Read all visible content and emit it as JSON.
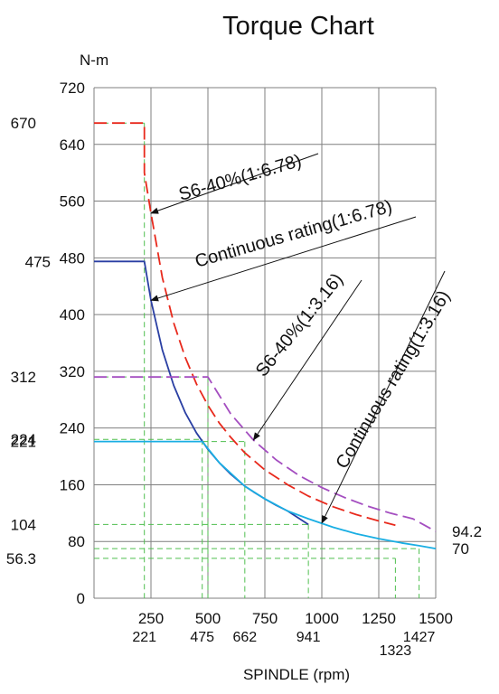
{
  "chart_data": {
    "type": "line",
    "title": "Torque Chart",
    "ylabel": "N-m",
    "xlabel": "SPINDLE (rpm)",
    "xlim": [
      0,
      1500
    ],
    "ylim": [
      0,
      720
    ],
    "x_ticks": [
      250,
      500,
      750,
      1000,
      1250,
      1500
    ],
    "y_ticks": [
      0,
      80,
      160,
      240,
      320,
      400,
      480,
      560,
      640,
      720
    ],
    "x_grid": [
      0,
      250,
      500,
      750,
      1000,
      1250,
      1500
    ],
    "y_grid": [
      0,
      80,
      160,
      240,
      320,
      400,
      480,
      560,
      640,
      720
    ],
    "x_markers": [
      {
        "label": "221",
        "value": 221,
        "row": 1
      },
      {
        "label": "475",
        "value": 475,
        "row": 1
      },
      {
        "label": "662",
        "value": 662,
        "row": 1
      },
      {
        "label": "941",
        "value": 941,
        "row": 1
      },
      {
        "label": "1427",
        "value": 1427,
        "row": 1
      },
      {
        "label": "1323",
        "value": 1323,
        "row": 2
      }
    ],
    "y_markers_left": [
      {
        "label": "670",
        "value": 670
      },
      {
        "label": "312",
        "value": 312
      },
      {
        "label": "224",
        "value": 224
      },
      {
        "label": "221",
        "value": 221
      },
      {
        "label": "104",
        "value": 104
      },
      {
        "label": "56.3",
        "value": 56.3
      }
    ],
    "y_marker_475": {
      "label": "475",
      "value": 475
    },
    "y_markers_right": [
      {
        "label": "94.2",
        "value": 94.2
      },
      {
        "label": "70",
        "value": 70
      }
    ],
    "guides": [
      {
        "x": 221,
        "y": 670
      },
      {
        "x": 941,
        "y": 104
      },
      {
        "x": 475,
        "y": 224
      },
      {
        "x": 662,
        "y": 221
      },
      {
        "x": 1427,
        "y": 70
      },
      {
        "x": 1323,
        "y": 56.3
      },
      {
        "x": 500,
        "y": 312
      }
    ],
    "series": [
      {
        "name": "S6-40%(1:6.78)",
        "color": "#e8291c",
        "dashed": true,
        "points": [
          [
            0,
            670
          ],
          [
            221,
            670
          ],
          [
            221,
            600
          ],
          [
            250,
            543
          ],
          [
            300,
            452
          ],
          [
            350,
            388
          ],
          [
            400,
            340
          ],
          [
            450,
            302
          ],
          [
            500,
            272
          ],
          [
            550,
            247
          ],
          [
            600,
            227
          ],
          [
            662,
            205
          ],
          [
            750,
            181
          ],
          [
            850,
            160
          ],
          [
            941,
            144
          ],
          [
            1050,
            129
          ],
          [
            1150,
            118
          ],
          [
            1250,
            109
          ],
          [
            1323,
            103
          ]
        ]
      },
      {
        "name": "Continuous rating(1:6.78)",
        "color": "#2a3fa3",
        "dashed": false,
        "points": [
          [
            0,
            475
          ],
          [
            221,
            475
          ],
          [
            250,
            420
          ],
          [
            300,
            350
          ],
          [
            350,
            300
          ],
          [
            400,
            262
          ],
          [
            450,
            233
          ],
          [
            500,
            210
          ],
          [
            550,
            191
          ],
          [
            600,
            175
          ],
          [
            662,
            158
          ],
          [
            700,
            150
          ],
          [
            750,
            140
          ],
          [
            800,
            131
          ],
          [
            850,
            123
          ],
          [
            941,
            104
          ]
        ]
      },
      {
        "name": "S6-40%(1:3.16)",
        "color": "#a44ec0",
        "dashed": true,
        "points": [
          [
            0,
            312
          ],
          [
            500,
            312
          ],
          [
            600,
            260
          ],
          [
            700,
            223
          ],
          [
            800,
            195
          ],
          [
            900,
            173
          ],
          [
            1000,
            156
          ],
          [
            1100,
            142
          ],
          [
            1200,
            130
          ],
          [
            1300,
            120
          ],
          [
            1400,
            112
          ],
          [
            1500,
            94.2
          ]
        ]
      },
      {
        "name": "Continuous rating(1:3.16)",
        "color": "#19aee3",
        "dashed": false,
        "points": [
          [
            0,
            221
          ],
          [
            475,
            221
          ],
          [
            550,
            191
          ],
          [
            662,
            158
          ],
          [
            750,
            140
          ],
          [
            850,
            123
          ],
          [
            941,
            112
          ],
          [
            1050,
            100
          ],
          [
            1150,
            91
          ],
          [
            1250,
            84
          ],
          [
            1350,
            78
          ],
          [
            1427,
            74
          ],
          [
            1500,
            70
          ]
        ]
      }
    ],
    "annotations": [
      {
        "text": "S6-40%(1:6.78)",
        "series": 0,
        "target": [
          250,
          543
        ]
      },
      {
        "text": "Continuous rating(1:6.78)",
        "series": 1,
        "target": [
          250,
          420
        ]
      },
      {
        "text": "S6-40%(1:3.16)",
        "series": 2,
        "target": [
          700,
          223
        ]
      },
      {
        "text": "Continuous rating(1:3.16)",
        "series": 3,
        "target": [
          1000,
          106
        ]
      }
    ],
    "grid": true,
    "legend": "none"
  }
}
